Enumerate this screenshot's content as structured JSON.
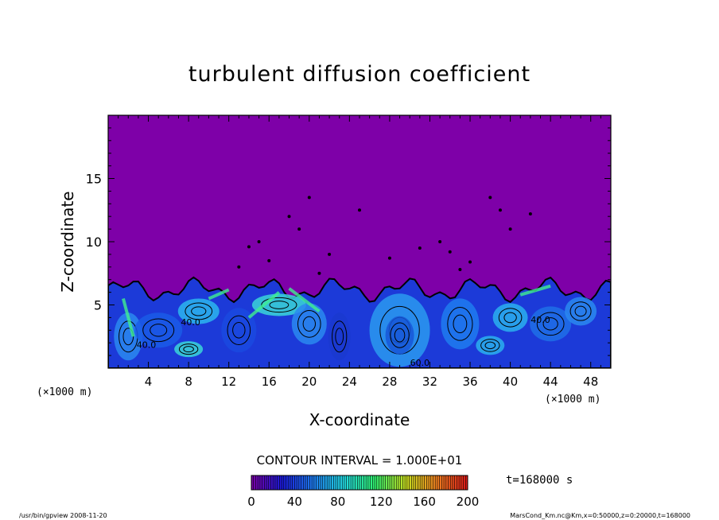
{
  "chart_data": {
    "type": "heatmap",
    "title": "turbulent diffusion coefficient",
    "xlabel": "X-coordinate",
    "ylabel": "Z-coordinate",
    "x_unit": "(×1000 m)",
    "y_unit": "(×1000 m)",
    "xlim": [
      0,
      50
    ],
    "ylim": [
      0,
      20
    ],
    "x_ticks": [
      4,
      8,
      12,
      16,
      20,
      24,
      28,
      32,
      36,
      40,
      44,
      48
    ],
    "y_ticks": [
      5,
      10,
      15
    ],
    "contour_interval_label": "CONTOUR INTERVAL = 1.000E+01",
    "contour_labels": [
      "40.0",
      "40.0",
      "40.0",
      "60.0"
    ],
    "time_label": "t=168000 s",
    "colorbar": {
      "min": 0,
      "max": 200,
      "ticks": [
        "0",
        "40",
        "80",
        "120",
        "160",
        "200"
      ],
      "colors": [
        "#7a00a6",
        "#1a1ad8",
        "#1e7cf0",
        "#22d8e0",
        "#30f070",
        "#c8e020",
        "#f08020",
        "#d81818"
      ]
    },
    "background_color": "#7e00a8",
    "boundary_layer_top_km": 7,
    "footer_left": "/usr/bin/gpview   2008-11-20",
    "footer_right": "MarsCond_Km.nc@Km,x=0:50000,z=0:20000,t=168000"
  }
}
